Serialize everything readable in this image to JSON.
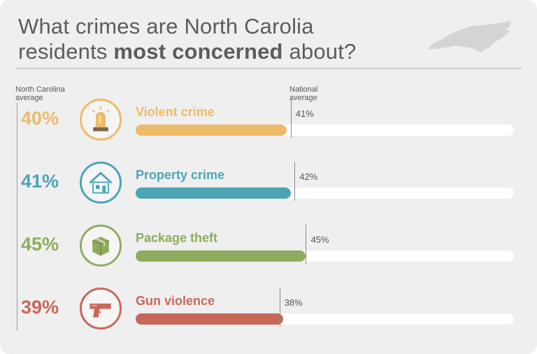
{
  "title": {
    "part1": "What crimes are North Carolia",
    "part2": "residents ",
    "bold": "most concerned",
    "part3": " about?"
  },
  "labels": {
    "nc_average": "North Carolina average",
    "national_average": "National average"
  },
  "chart_data": {
    "type": "bar",
    "title": "What crimes are North Carolia residents most concerned about?",
    "categories": [
      "Violent crime",
      "Property crime",
      "Package theft",
      "Gun violence"
    ],
    "series": [
      {
        "name": "North Carolina average",
        "values": [
          40,
          41,
          45,
          39
        ]
      },
      {
        "name": "National average",
        "values": [
          41,
          42,
          45,
          38
        ]
      }
    ],
    "value_labels": [
      "40%",
      "41%",
      "45%",
      "39%"
    ],
    "national_labels": [
      "41%",
      "42%",
      "45%",
      "38%"
    ],
    "ylim": [
      0,
      100
    ],
    "colors": [
      "#edbb6a",
      "#4aa6b5",
      "#8fac5e",
      "#c8685a"
    ],
    "icons": [
      "siren-icon",
      "house-icon",
      "package-icon",
      "gun-icon"
    ]
  }
}
